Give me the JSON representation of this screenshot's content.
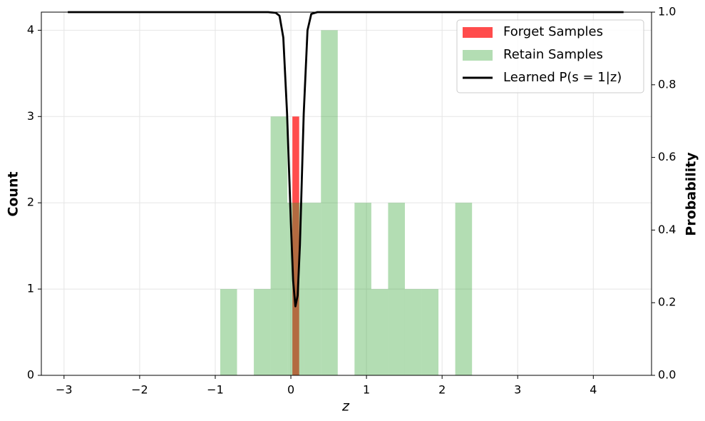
{
  "chart_data": {
    "type": "histogram",
    "xlabel": "z",
    "ylabel": "Count",
    "y2label": "Probability",
    "xlim": [
      -3.3,
      4.77
    ],
    "ylim": [
      0,
      4.21
    ],
    "y2lim": [
      0,
      1
    ],
    "xticks": [
      {
        "value": -3,
        "label": "−3"
      },
      {
        "value": -2,
        "label": "−2"
      },
      {
        "value": -1,
        "label": "−1"
      },
      0,
      1,
      2,
      3,
      4
    ],
    "yticks": [
      0,
      1,
      2,
      3,
      4
    ],
    "y2ticks": [
      {
        "value": 0,
        "label": "0.0"
      },
      {
        "value": 0.2,
        "label": "0.2"
      },
      {
        "value": 0.4,
        "label": "0.4"
      },
      {
        "value": 0.6,
        "label": "0.6"
      },
      {
        "value": 0.8,
        "label": "0.8"
      },
      {
        "value": 1,
        "label": "1.0"
      }
    ],
    "grid": true,
    "legend": "upper right",
    "series": [
      {
        "name": "Forget Samples",
        "color": "#ff0000",
        "opacity": 0.7,
        "bins": [
          0.02,
          0.11
        ],
        "values": [
          3
        ]
      },
      {
        "name": "Retain Samples",
        "color": "#2ca02c",
        "opacity": 0.36,
        "bins": [
          -0.934,
          -0.712,
          -0.49,
          -0.268,
          -0.046,
          0.176,
          0.398,
          0.62,
          0.842,
          1.064,
          1.286,
          1.508,
          1.73,
          1.952,
          2.174,
          2.396
        ],
        "values": [
          1,
          0,
          1,
          3,
          2,
          2,
          4,
          0,
          2,
          1,
          2,
          1,
          1,
          0,
          2
        ]
      },
      {
        "name": "Learned P(s = 1|z)",
        "type": "line",
        "axis": "y2",
        "color": "#000000",
        "x": [
          -2.95,
          -0.3,
          -0.2,
          -0.15,
          -0.1,
          -0.05,
          0,
          0.03,
          0.06,
          0.09,
          0.12,
          0.17,
          0.22,
          0.27,
          0.35,
          4.4
        ],
        "values": [
          1,
          1,
          0.998,
          0.99,
          0.93,
          0.72,
          0.42,
          0.26,
          0.19,
          0.22,
          0.36,
          0.72,
          0.95,
          0.995,
          1,
          1
        ]
      }
    ]
  }
}
